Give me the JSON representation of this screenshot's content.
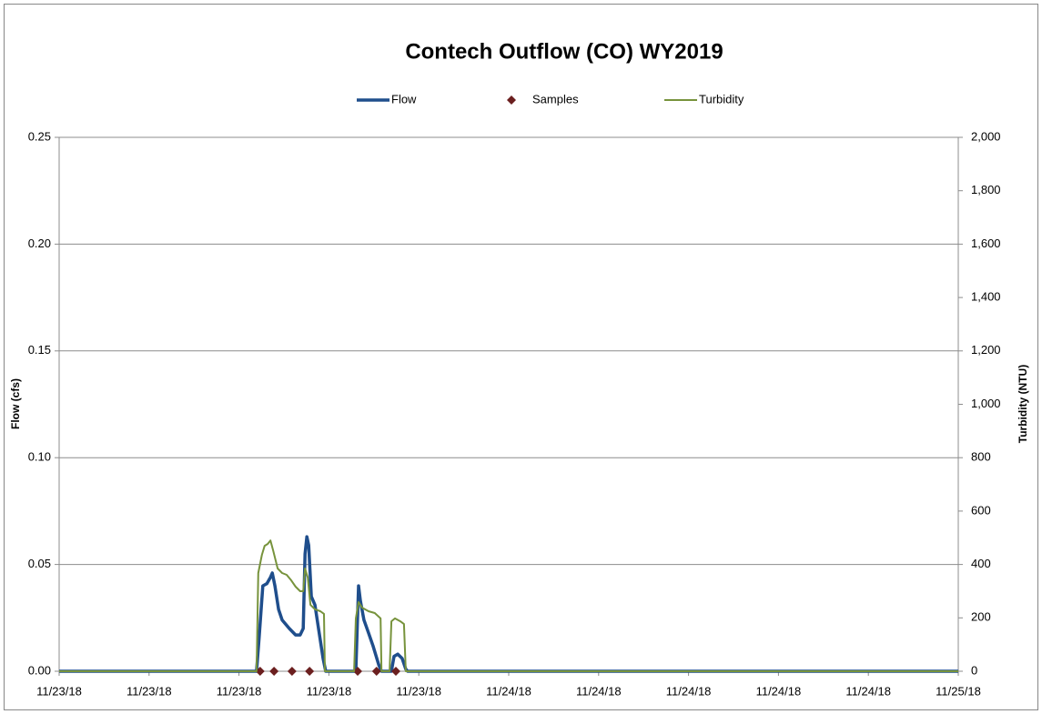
{
  "chart_data": {
    "type": "line",
    "title": "Contech Outflow (CO) WY2019",
    "ylabel": "Flow (cfs)",
    "y2label": "Turbidity (NTU)",
    "xlim": [
      0,
      2
    ],
    "xticks": [
      {
        "value": 0,
        "label": "11/23/18"
      },
      {
        "value": 0.2,
        "label": "11/23/18"
      },
      {
        "value": 0.4,
        "label": "11/23/18"
      },
      {
        "value": 0.6,
        "label": "11/23/18"
      },
      {
        "value": 0.8,
        "label": "11/23/18"
      },
      {
        "value": 1.0,
        "label": "11/24/18"
      },
      {
        "value": 1.2,
        "label": "11/24/18"
      },
      {
        "value": 1.4,
        "label": "11/24/18"
      },
      {
        "value": 1.6,
        "label": "11/24/18"
      },
      {
        "value": 1.8,
        "label": "11/24/18"
      },
      {
        "value": 2.0,
        "label": "11/25/18"
      }
    ],
    "ylim": [
      0,
      0.25
    ],
    "yticks": [
      {
        "value": 0,
        "label": "0.00"
      },
      {
        "value": 0.05,
        "label": "0.05"
      },
      {
        "value": 0.1,
        "label": "0.10"
      },
      {
        "value": 0.15,
        "label": "0.15"
      },
      {
        "value": 0.2,
        "label": "0.20"
      },
      {
        "value": 0.25,
        "label": "0.25"
      }
    ],
    "y2lim": [
      0,
      2000
    ],
    "y2ticks": [
      0,
      200,
      400,
      600,
      800,
      {
        "value": 1000,
        "label": "1,000"
      },
      {
        "value": 1200,
        "label": "1,200"
      },
      {
        "value": 1400,
        "label": "1,400"
      },
      {
        "value": 1600,
        "label": "1,600"
      },
      {
        "value": 1800,
        "label": "1,800"
      },
      {
        "value": 2000,
        "label": "2,000"
      }
    ],
    "grid": true,
    "legend": "top",
    "series": [
      {
        "name": "Flow",
        "color": "#1f4e8c",
        "axis": "y",
        "kind": "line",
        "x": [
          0,
          0.439,
          0.445,
          0.453,
          0.462,
          0.47,
          0.474,
          0.48,
          0.488,
          0.496,
          0.512,
          0.526,
          0.536,
          0.543,
          0.547,
          0.551,
          0.555,
          0.561,
          0.569,
          0.577,
          0.587,
          0.593,
          0.66,
          0.666,
          0.67,
          0.678,
          0.688,
          0.698,
          0.711,
          0.717,
          0.739,
          0.745,
          0.753,
          0.763,
          0.771,
          0.775,
          2
        ],
        "values": [
          0,
          0,
          0.016,
          0.04,
          0.041,
          0.044,
          0.046,
          0.04,
          0.029,
          0.024,
          0.02,
          0.017,
          0.017,
          0.02,
          0.055,
          0.063,
          0.059,
          0.035,
          0.031,
          0.02,
          0.006,
          0,
          0,
          0.04,
          0.033,
          0.024,
          0.018,
          0.012,
          0.003,
          0,
          0,
          0.007,
          0.008,
          0.006,
          0.001,
          0,
          0
        ]
      },
      {
        "name": "Samples",
        "color": "#6b1f1f",
        "axis": "y",
        "kind": "marker",
        "x": [
          0.447,
          0.478,
          0.518,
          0.557,
          0.664,
          0.706,
          0.749
        ],
        "values": [
          0,
          0,
          0,
          0,
          0,
          0,
          0
        ]
      },
      {
        "name": "Turbidity",
        "color": "#77933c",
        "axis": "y2",
        "kind": "line",
        "x": [
          0,
          0.439,
          0.443,
          0.451,
          0.457,
          0.464,
          0.47,
          0.476,
          0.486,
          0.496,
          0.506,
          0.516,
          0.526,
          0.536,
          0.543,
          0.547,
          0.553,
          0.559,
          0.569,
          0.581,
          0.589,
          0.591,
          0.656,
          0.66,
          0.666,
          0.674,
          0.688,
          0.702,
          0.715,
          0.717,
          0.735,
          0.739,
          0.747,
          0.759,
          0.767,
          0.771,
          2
        ],
        "values": [
          0,
          0,
          368,
          436,
          470,
          477,
          490,
          453,
          385,
          368,
          361,
          341,
          317,
          300,
          300,
          385,
          351,
          249,
          232,
          225,
          215,
          0,
          0,
          198,
          259,
          238,
          225,
          218,
          198,
          0,
          0,
          187,
          198,
          187,
          177,
          0,
          0
        ]
      }
    ]
  }
}
